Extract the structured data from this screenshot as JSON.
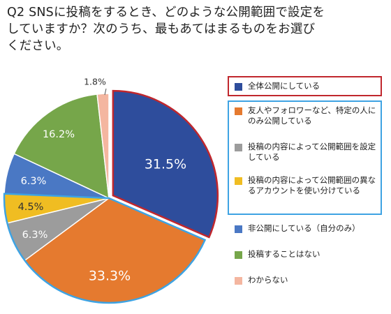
{
  "title_lines": [
    "Q2 SNSに投稿をするとき、どのような公開範囲で設定を",
    "していますか？次のうち、最もあてはまるものをお選び",
    "ください。"
  ],
  "colors": {
    "highlight_red": "#c0272d",
    "highlight_blue": "#3ea3e3"
  },
  "chart_data": {
    "type": "pie",
    "title": "Q2 SNSに投稿をするとき、どのような公開範囲で設定をしていますか？次のうち、最もあてはまるものをお選びください。",
    "unit": "%",
    "start_angle_deg": 0,
    "direction": "clockwise",
    "legend_position": "right",
    "slices": [
      {
        "label": "全体公開にしている",
        "value": 31.5,
        "display": "31.5%",
        "color": "#2e4d9c",
        "exploded": true
      },
      {
        "label": "友人やフォロワーなど、特定の人にのみ公開している",
        "value": 33.3,
        "display": "33.3%",
        "color": "#e57a2f",
        "exploded": false
      },
      {
        "label": "投稿の内容によって公開範囲を設定している",
        "value": 6.3,
        "display": "6.3%",
        "color": "#9c9c9c",
        "exploded": false
      },
      {
        "label": "投稿の内容によって公開範囲の異なるアカウントを使い分けている",
        "value": 4.5,
        "display": "4.5%",
        "color": "#f0bd22",
        "exploded": false
      },
      {
        "label": "非公開にしている（自分のみ）",
        "value": 6.3,
        "display": "6.3%",
        "color": "#4a78c4",
        "exploded": false
      },
      {
        "label": "投稿することはない",
        "value": 16.2,
        "display": "16.2%",
        "color": "#76a64a",
        "exploded": false
      },
      {
        "label": "わからない",
        "value": 1.8,
        "display": "1.8%",
        "color": "#f4b6a0",
        "exploded": false
      }
    ]
  }
}
